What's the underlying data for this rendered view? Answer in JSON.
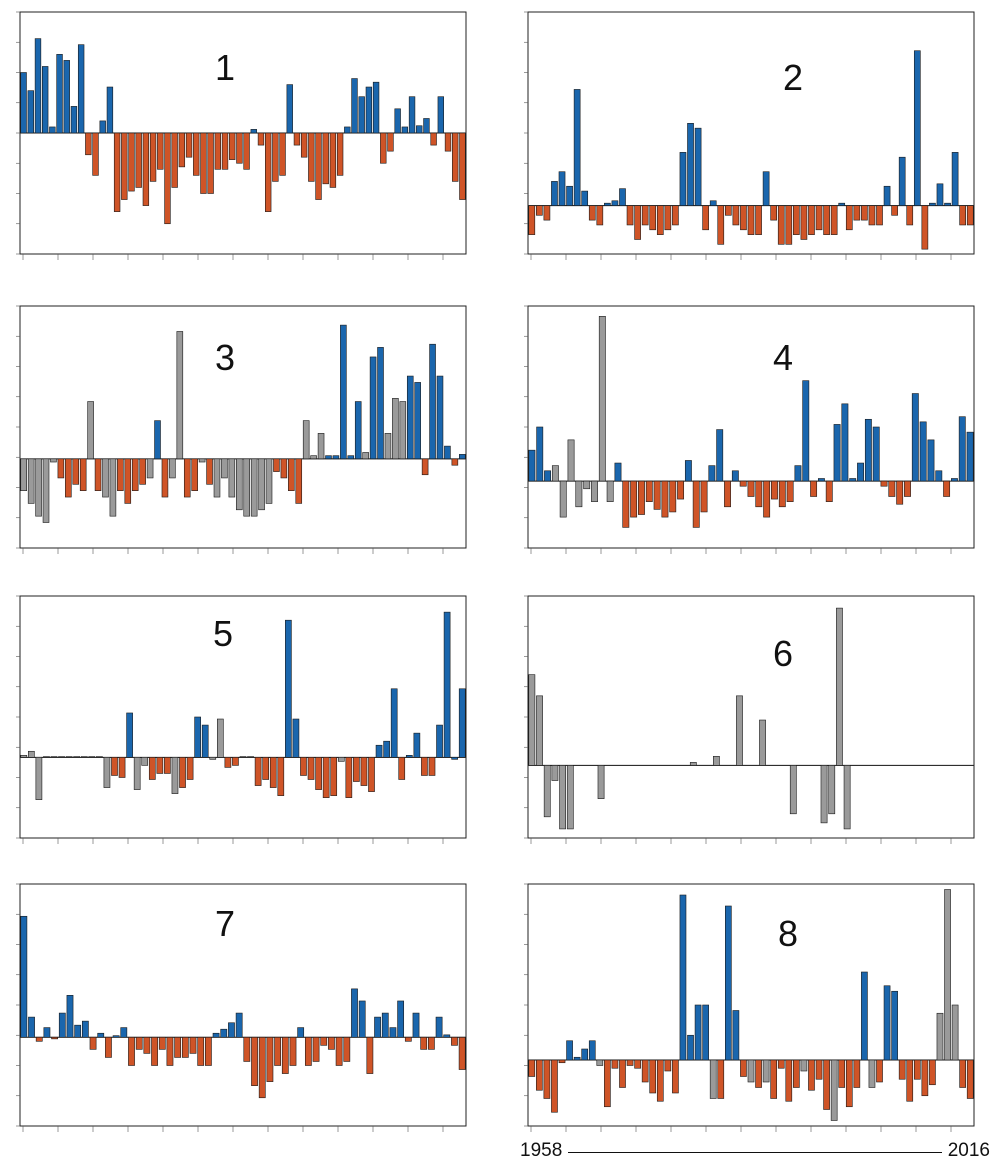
{
  "colors": {
    "positive": "#1a66ad",
    "negative": "#cf5427",
    "neutral": "#9a9a9a",
    "frame": "#222222"
  },
  "timeline": {
    "start": "1958",
    "end": "2016"
  },
  "chart_data": [
    {
      "type": "bar",
      "label": "1",
      "ylim": [
        -1,
        1
      ],
      "values": [
        0.5,
        0.35,
        0.78,
        0.55,
        0.05,
        0.65,
        0.6,
        0.22,
        0.73,
        -0.18,
        -0.35,
        0.1,
        0.38,
        -0.65,
        -0.55,
        -0.48,
        -0.45,
        -0.6,
        -0.4,
        -0.3,
        -0.75,
        -0.45,
        -0.28,
        -0.2,
        -0.35,
        -0.5,
        -0.5,
        -0.3,
        -0.3,
        -0.22,
        -0.25,
        -0.3,
        0.03,
        -0.1,
        -0.65,
        -0.4,
        -0.35,
        0.4,
        -0.1,
        -0.2,
        -0.4,
        -0.55,
        -0.42,
        -0.45,
        -0.35,
        0.05,
        0.45,
        0.3,
        0.38,
        0.42,
        -0.25,
        -0.15,
        0.2,
        0.05,
        0.3,
        0.06,
        0.12,
        -0.1,
        0.3,
        -0.15,
        -0.4,
        -0.55
      ],
      "colors": "auto"
    },
    {
      "type": "bar",
      "label": "2",
      "ylim": [
        -1,
        4
      ],
      "values": [
        -0.6,
        -0.2,
        -0.3,
        0.5,
        0.7,
        0.4,
        2.4,
        0.3,
        -0.3,
        -0.4,
        0.05,
        0.1,
        0.35,
        -0.4,
        -0.7,
        -0.4,
        -0.5,
        -0.6,
        -0.5,
        -0.4,
        1.1,
        1.7,
        1.6,
        -0.5,
        0.1,
        -0.8,
        -0.2,
        -0.4,
        -0.5,
        -0.6,
        -0.6,
        0.7,
        -0.3,
        -0.8,
        -0.8,
        -0.6,
        -0.7,
        -0.6,
        -0.5,
        -0.6,
        -0.6,
        0.05,
        -0.5,
        -0.3,
        -0.3,
        -0.4,
        -0.4,
        0.4,
        -0.2,
        1.0,
        -0.4,
        3.2,
        -0.9,
        0.05,
        0.45,
        0.05,
        1.1,
        -0.4,
        -0.4
      ],
      "colors": "auto"
    },
    {
      "type": "bar",
      "label": "3",
      "ylim": [
        -1.4,
        2.4
      ],
      "values": [
        -0.5,
        -0.7,
        -0.9,
        -1.0,
        -0.05,
        -0.3,
        -0.6,
        -0.4,
        -0.5,
        0.9,
        -0.5,
        -0.6,
        -0.9,
        -0.5,
        -0.7,
        -0.5,
        -0.4,
        -0.3,
        0.6,
        -0.6,
        -0.3,
        2.0,
        -0.6,
        -0.5,
        -0.05,
        -0.4,
        -0.6,
        -0.3,
        -0.6,
        -0.8,
        -0.9,
        -0.9,
        -0.8,
        -0.7,
        -0.2,
        -0.3,
        -0.5,
        -0.7,
        0.6,
        0.05,
        0.4,
        0.05,
        0.05,
        2.1,
        0.05,
        0.9,
        0.1,
        1.6,
        1.75,
        0.4,
        0.95,
        0.9,
        1.3,
        1.2,
        -0.25,
        1.8,
        1.3,
        0.2,
        -0.1,
        0.07
      ],
      "colors": [
        "n",
        "n",
        "n",
        "n",
        "n",
        "o",
        "o",
        "o",
        "o",
        "n",
        "o",
        "n",
        "n",
        "o",
        "o",
        "o",
        "o",
        "n",
        "b",
        "o",
        "n",
        "n",
        "o",
        "o",
        "n",
        "o",
        "n",
        "n",
        "n",
        "n",
        "n",
        "n",
        "n",
        "n",
        "o",
        "o",
        "o",
        "o",
        "n",
        "n",
        "n",
        "b",
        "b",
        "b",
        "b",
        "b",
        "n",
        "b",
        "b",
        "n",
        "n",
        "n",
        "b",
        "b",
        "o",
        "b",
        "b",
        "b",
        "o",
        "b"
      ]
    },
    {
      "type": "bar",
      "label": "4",
      "ylim": [
        -1.3,
        3.4
      ],
      "values": [
        0.6,
        1.05,
        0.2,
        0.3,
        -0.7,
        0.8,
        -0.5,
        -0.15,
        -0.4,
        3.2,
        -0.4,
        0.35,
        -0.9,
        -0.7,
        -0.65,
        -0.4,
        -0.55,
        -0.7,
        -0.6,
        -0.35,
        0.4,
        -0.9,
        -0.6,
        0.3,
        1.0,
        -0.5,
        0.2,
        -0.1,
        -0.3,
        -0.5,
        -0.7,
        -0.35,
        -0.5,
        -0.4,
        0.3,
        1.95,
        -0.3,
        0.05,
        -0.4,
        1.1,
        1.5,
        0.05,
        0.35,
        1.2,
        1.05,
        -0.1,
        -0.3,
        -0.45,
        -0.3,
        1.7,
        1.15,
        0.8,
        0.2,
        -0.3,
        0.05,
        1.25,
        0.95
      ],
      "colors": [
        "b",
        "b",
        "b",
        "n",
        "n",
        "n",
        "n",
        "n",
        "n",
        "n",
        "n",
        "b",
        "o",
        "o",
        "o",
        "o",
        "o",
        "o",
        "o",
        "o",
        "b",
        "o",
        "o",
        "b",
        "b",
        "o",
        "b",
        "o",
        "o",
        "o",
        "o",
        "o",
        "o",
        "o",
        "b",
        "b",
        "o",
        "b",
        "o",
        "b",
        "b",
        "b",
        "b",
        "b",
        "b",
        "o",
        "o",
        "o",
        "o",
        "b",
        "b",
        "b",
        "b",
        "o",
        "b",
        "b",
        "b"
      ]
    },
    {
      "type": "bar",
      "label": "5",
      "ylim": [
        -2,
        4
      ],
      "values": [
        0.05,
        0.15,
        -1.05,
        0.02,
        0.02,
        0.02,
        0.02,
        0.02,
        0.02,
        0.02,
        0.02,
        -0.75,
        -0.45,
        -0.5,
        1.1,
        -0.8,
        -0.2,
        -0.55,
        -0.4,
        -0.4,
        -0.9,
        -0.75,
        -0.55,
        1.0,
        0.8,
        -0.05,
        0.95,
        -0.25,
        -0.2,
        0.02,
        0.02,
        -0.7,
        -0.55,
        -0.75,
        -0.95,
        3.4,
        0.95,
        -0.45,
        -0.55,
        -0.8,
        -1.0,
        -0.95,
        -0.1,
        -1.0,
        -0.6,
        -0.7,
        -0.85,
        0.3,
        0.4,
        1.7,
        -0.55,
        0.05,
        0.6,
        -0.45,
        -0.45,
        0.8,
        3.6,
        -0.05,
        1.7
      ],
      "colors": [
        "n",
        "n",
        "n",
        "n",
        "n",
        "n",
        "n",
        "n",
        "n",
        "n",
        "n",
        "n",
        "o",
        "o",
        "b",
        "n",
        "n",
        "o",
        "o",
        "o",
        "n",
        "o",
        "o",
        "b",
        "b",
        "n",
        "n",
        "o",
        "o",
        "n",
        "n",
        "o",
        "o",
        "o",
        "o",
        "b",
        "b",
        "o",
        "o",
        "o",
        "o",
        "o",
        "n",
        "o",
        "o",
        "o",
        "o",
        "b",
        "b",
        "b",
        "o",
        "b",
        "b",
        "o",
        "o",
        "b",
        "b",
        "b",
        "b"
      ]
    },
    {
      "type": "bar",
      "label": "6",
      "ylim": [
        -1.2,
        2.8
      ],
      "values": [
        1.5,
        1.15,
        -0.85,
        -0.25,
        -1.05,
        -1.05,
        0,
        0,
        0,
        -0.55,
        0,
        0,
        0,
        0,
        0,
        0,
        0,
        0,
        0,
        0,
        0,
        0.05,
        0,
        0,
        0.15,
        0,
        0,
        1.15,
        0,
        0,
        0.75,
        0,
        0,
        0,
        -0.8,
        0,
        0,
        0,
        -0.95,
        -0.8,
        2.6,
        -1.05,
        0,
        0,
        0,
        0,
        0,
        0,
        0,
        0,
        0,
        0,
        0,
        0,
        0,
        0,
        0,
        0
      ],
      "colors": "neutral"
    },
    {
      "type": "bar",
      "label": "7",
      "ylim": [
        -1.1,
        1.9
      ],
      "values": [
        1.5,
        0.25,
        -0.05,
        0.12,
        -0.02,
        0.3,
        0.52,
        0.15,
        0.2,
        -0.15,
        0.05,
        -0.25,
        0.02,
        0.12,
        -0.35,
        -0.15,
        -0.2,
        -0.35,
        -0.15,
        -0.35,
        -0.25,
        -0.25,
        -0.2,
        -0.35,
        -0.35,
        0.05,
        0.1,
        0.18,
        0.3,
        -0.3,
        -0.6,
        -0.75,
        -0.55,
        -0.35,
        -0.45,
        -0.35,
        0.12,
        -0.35,
        -0.3,
        -0.1,
        -0.15,
        -0.35,
        -0.3,
        0.6,
        0.45,
        -0.45,
        0.25,
        0.3,
        0.12,
        0.45,
        -0.05,
        0.3,
        -0.15,
        -0.15,
        0.25,
        0.03,
        -0.1,
        -0.4
      ],
      "colors": "auto"
    },
    {
      "type": "bar",
      "label": "8",
      "ylim": [
        -1.2,
        3.2
      ],
      "values": [
        -0.3,
        -0.55,
        -0.7,
        -0.95,
        -0.05,
        0.35,
        0.05,
        0.2,
        0.35,
        -0.1,
        -0.85,
        -0.15,
        -0.5,
        -0.1,
        -0.15,
        -0.4,
        -0.6,
        -0.75,
        -0.2,
        -0.6,
        3.0,
        0.45,
        1.0,
        1.0,
        -0.7,
        -0.7,
        2.8,
        0.9,
        -0.3,
        -0.4,
        -0.5,
        -0.4,
        -0.7,
        -0.15,
        -0.75,
        -0.5,
        -0.2,
        -0.55,
        -0.35,
        -0.9,
        -1.1,
        -0.5,
        -0.85,
        -0.5,
        1.6,
        -0.5,
        -0.4,
        1.35,
        1.25,
        -0.35,
        -0.75,
        -0.35,
        -0.65,
        -0.45,
        0.85,
        3.1,
        1.0,
        -0.5,
        -0.7
      ],
      "colors": [
        "o",
        "o",
        "o",
        "o",
        "o",
        "b",
        "b",
        "b",
        "b",
        "n",
        "o",
        "o",
        "o",
        "o",
        "o",
        "o",
        "o",
        "o",
        "o",
        "o",
        "b",
        "b",
        "b",
        "b",
        "n",
        "o",
        "b",
        "b",
        "o",
        "n",
        "o",
        "n",
        "o",
        "o",
        "o",
        "o",
        "n",
        "o",
        "o",
        "o",
        "n",
        "o",
        "o",
        "o",
        "b",
        "n",
        "o",
        "b",
        "b",
        "o",
        "o",
        "o",
        "o",
        "o",
        "n",
        "n",
        "n",
        "o",
        "o"
      ]
    }
  ]
}
